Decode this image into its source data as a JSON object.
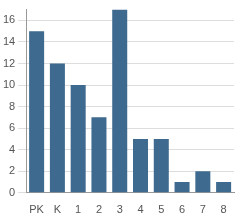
{
  "chart_data": {
    "type": "bar",
    "categories": [
      "PK",
      "K",
      "1",
      "2",
      "3",
      "4",
      "5",
      "6",
      "7",
      "8"
    ],
    "values": [
      15,
      12,
      10,
      7,
      17,
      5,
      5,
      1,
      2,
      1
    ],
    "color": "#3d6a8e",
    "ylim": [
      0,
      17
    ],
    "yticks": [
      0,
      2,
      4,
      6,
      8,
      10,
      12,
      14,
      16
    ],
    "grid": true
  }
}
